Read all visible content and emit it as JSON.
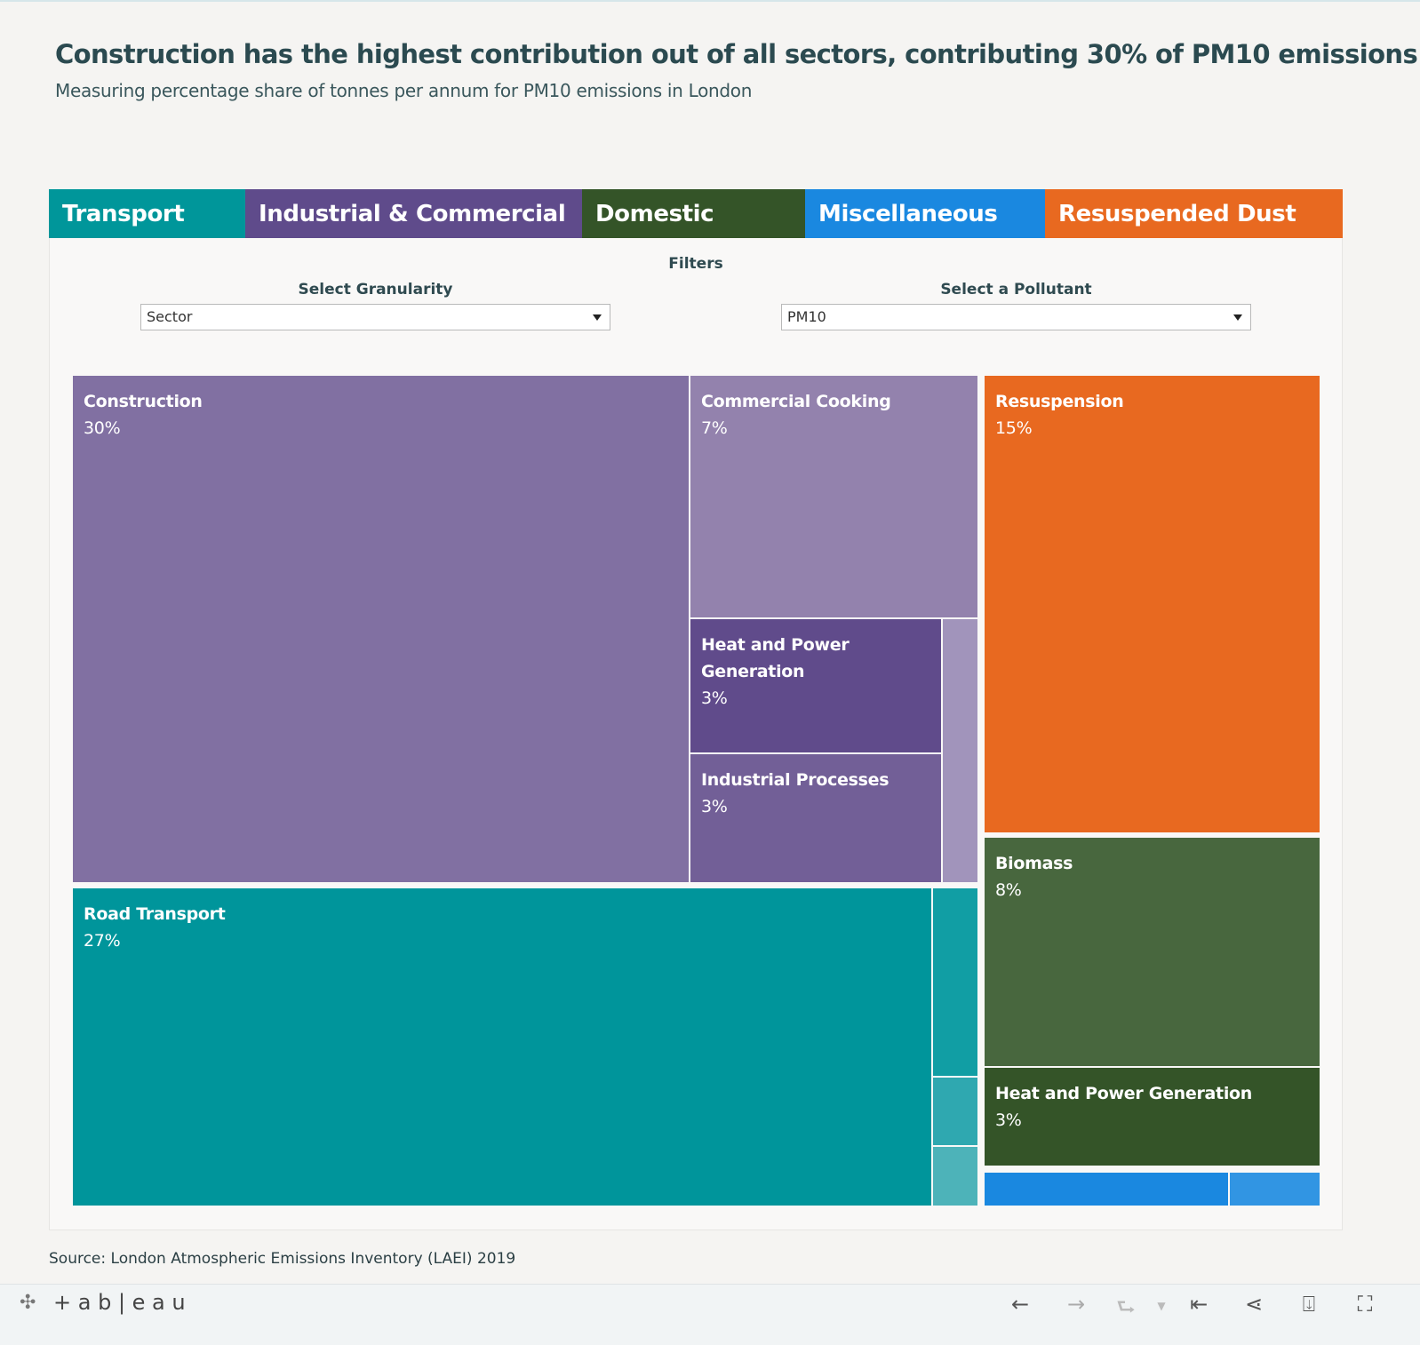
{
  "header": {
    "title": "Construction has the highest contribution out of all sectors, contributing 30% of PM10 emissions",
    "subtitle": "Measuring percentage share of tonnes per annum for PM10 emissions in London"
  },
  "legend": [
    {
      "label": "Transport",
      "color": "#00969a"
    },
    {
      "label": "Industrial & Commercial",
      "color": "#5f4b8b"
    },
    {
      "label": "Domestic",
      "color": "#345428"
    },
    {
      "label": "Miscellaneous",
      "color": "#1a88e0"
    },
    {
      "label": "Resuspended Dust",
      "color": "#e86920"
    }
  ],
  "filters": {
    "heading": "Filters",
    "granularity": {
      "label": "Select Granularity",
      "value": "Sector"
    },
    "pollutant": {
      "label": "Select a Pollutant",
      "value": "PM10"
    }
  },
  "chart_data": {
    "type": "treemap",
    "title": "Construction has the highest contribution out of all sectors, contributing 30% of PM10 emissions",
    "subtitle": "Measuring percentage share of tonnes per annum for PM10 emissions in London",
    "unit": "%",
    "tiles": [
      {
        "group": "Industrial & Commercial",
        "label": "Construction",
        "value": 30,
        "value_label": "30%",
        "color": "#8170a2"
      },
      {
        "group": "Industrial & Commercial",
        "label": "Commercial Cooking",
        "value": 7,
        "value_label": "7%",
        "color": "#9382ad"
      },
      {
        "group": "Industrial & Commercial",
        "label": "Heat and Power Generation",
        "value": 3,
        "value_label": "3%",
        "color": "#604b8b"
      },
      {
        "group": "Industrial & Commercial",
        "label": "Industrial Processes",
        "value": 3,
        "value_label": "3%",
        "color": "#725f97"
      },
      {
        "group": "Industrial & Commercial",
        "label": "",
        "color": "#a194bb"
      },
      {
        "group": "Transport",
        "label": "Road Transport",
        "value": 27,
        "value_label": "27%",
        "color": "#00959b"
      },
      {
        "group": "Transport",
        "label": "",
        "color": "#119ea4"
      },
      {
        "group": "Transport",
        "label": "",
        "color": "#2fa8b0"
      },
      {
        "group": "Transport",
        "label": "",
        "color": "#4db3b9"
      },
      {
        "group": "Resuspended Dust",
        "label": "Resuspension",
        "value": 15,
        "value_label": "15%",
        "color": "#e86920"
      },
      {
        "group": "Domestic",
        "label": "Biomass",
        "value": 8,
        "value_label": "8%",
        "color": "#48673e"
      },
      {
        "group": "Domestic",
        "label": "Heat and Power Generation",
        "value": 3,
        "value_label": "3%",
        "color": "#345428"
      },
      {
        "group": "Miscellaneous",
        "label": "",
        "color": "#1a88e0"
      },
      {
        "group": "Miscellaneous",
        "label": "",
        "color": "#3195e3"
      }
    ]
  },
  "source": "Source: London Atmospheric Emissions Inventory (LAEI) 2019",
  "toolbar": {
    "logo": "+ a b | e a u",
    "icons": [
      "undo-icon",
      "redo-icon",
      "revert-icon",
      "reset-icon",
      "share-icon",
      "download-icon",
      "fullscreen-icon"
    ]
  }
}
